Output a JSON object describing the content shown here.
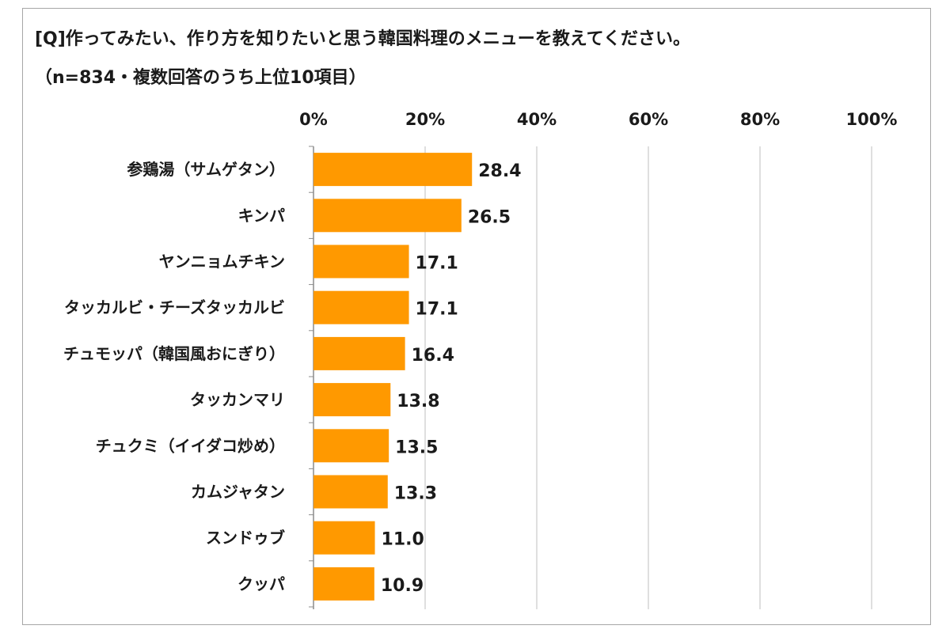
{
  "title_line1": "[Q]作ってみたい、作り方を知りたいと思う韓国料理のメニューを教えてください。",
  "title_line2": "（n=834・複数回答のうち上位10項目）",
  "colors": {
    "bar": "#ff9900",
    "grid": "#bfbfbf",
    "frame": "#a6a6a6",
    "text": "#1a1a1a"
  },
  "chart_data": {
    "type": "bar",
    "orientation": "horizontal",
    "categories": [
      "参鶏湯（サムゲタン）",
      "キンパ",
      "ヤンニョムチキン",
      "タッカルビ・チーズタッカルビ",
      "チュモッパ（韓国風おにぎり）",
      "タッカンマリ",
      "チュクミ（イイダコ炒め）",
      "カムジャタン",
      "スンドゥブ",
      "クッパ"
    ],
    "values": [
      28.4,
      26.5,
      17.1,
      17.1,
      16.4,
      13.8,
      13.5,
      13.3,
      11.0,
      10.9
    ],
    "value_labels": [
      "28.4",
      "26.5",
      "17.1",
      "17.1",
      "16.4",
      "13.8",
      "13.5",
      "13.3",
      "11.0",
      "10.9"
    ],
    "xlim": [
      0,
      100
    ],
    "x_ticks": [
      0,
      20,
      40,
      60,
      80,
      100
    ],
    "x_tick_labels": [
      "0%",
      "20%",
      "40%",
      "60%",
      "80%",
      "100%"
    ],
    "x_axis_position": "top",
    "grid": true
  }
}
